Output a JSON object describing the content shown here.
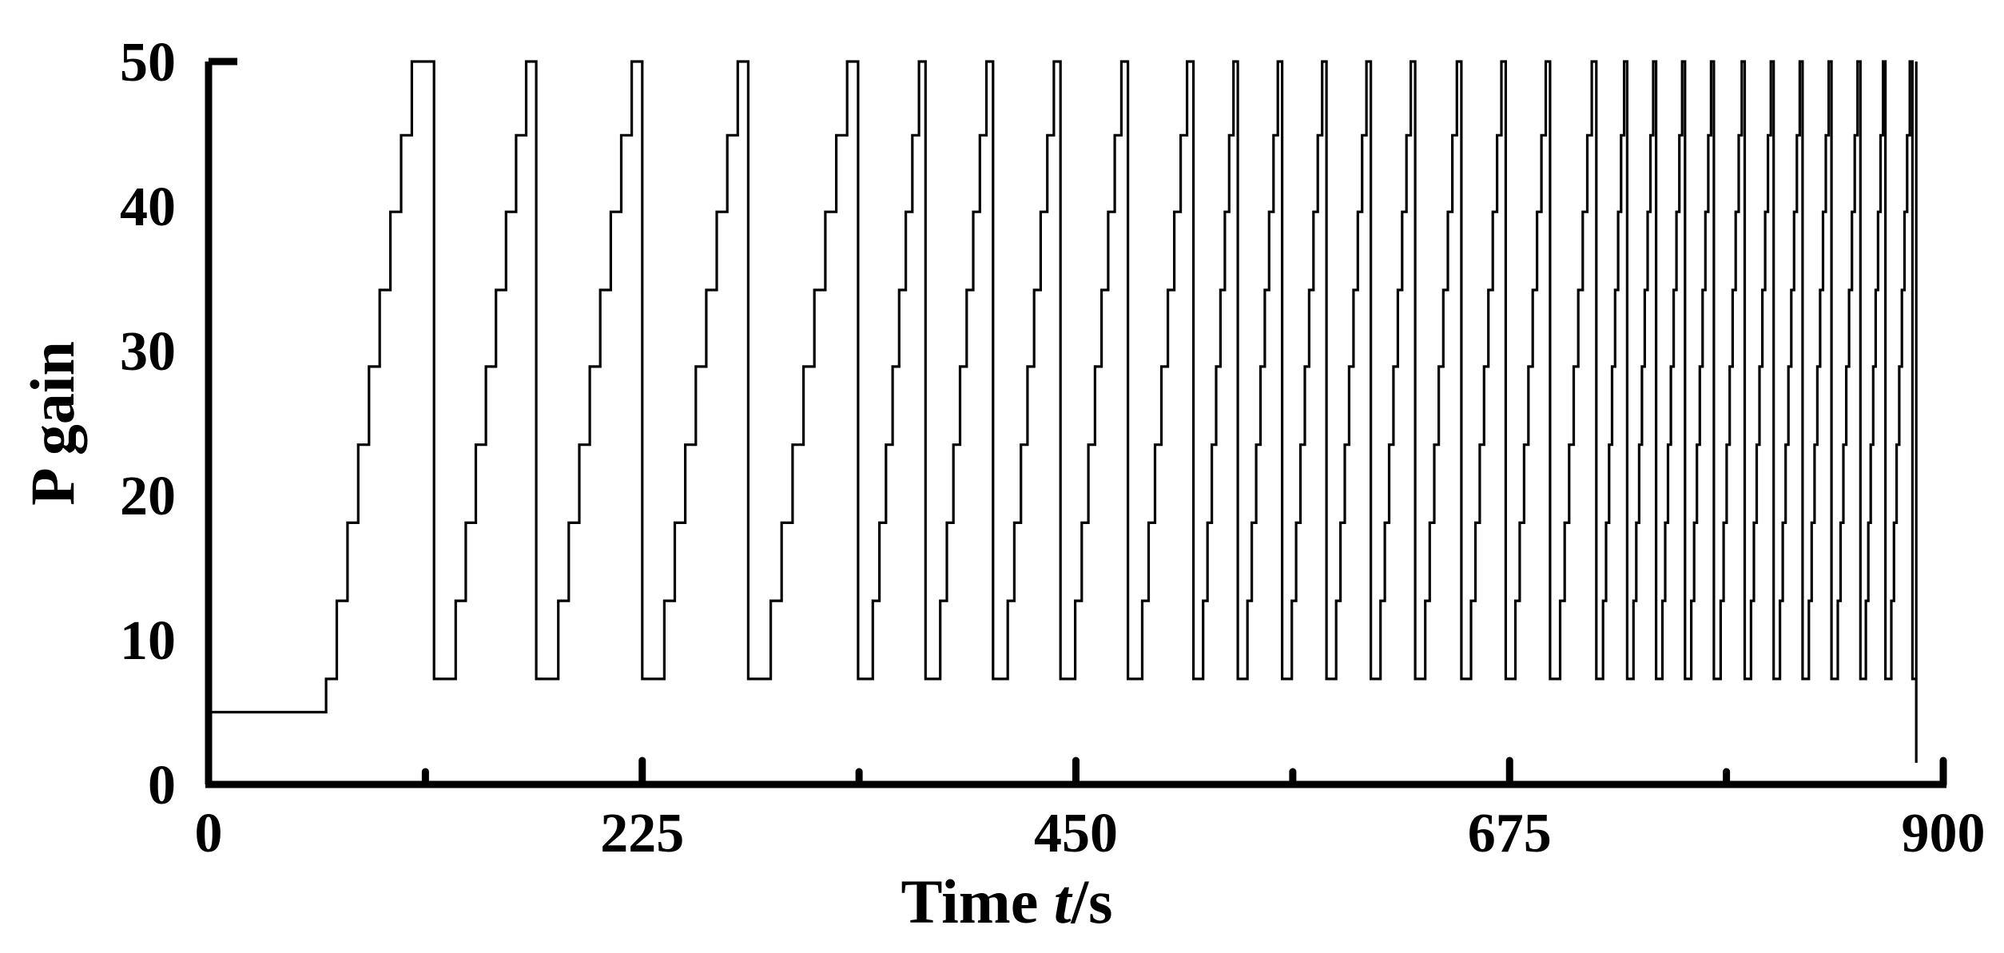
{
  "chart_data": {
    "type": "line",
    "title": "",
    "xlabel_prefix": "Time ",
    "xlabel_var": "t",
    "xlabel_suffix": "/s",
    "ylabel": "P gain",
    "xlim": [
      0,
      900
    ],
    "ylim": [
      0,
      50
    ],
    "x_ticks": [
      0,
      225,
      450,
      675,
      900
    ],
    "x_minor_ticks": [
      112.5,
      337.5,
      562.5,
      787.5
    ],
    "y_ticks": [
      0,
      10,
      20,
      30,
      40,
      50
    ],
    "grid": false,
    "legend": "none",
    "series": [
      {
        "line_color": "#000000",
        "baseline_value": 5,
        "baseline_until": 61,
        "step_levels": [
          7.3,
          12.7,
          18.1,
          23.5,
          28.9,
          34.2,
          39.6,
          44.9,
          50
        ],
        "reset_value": 7.3,
        "cycle_end_times": [
          117,
          170,
          225,
          280,
          337,
          372,
          407,
          442,
          477,
          511,
          534,
          557,
          580,
          603,
          626,
          650,
          673,
          696,
          720,
          736,
          751,
          766,
          781,
          797,
          812,
          827,
          842,
          857,
          870,
          884
        ],
        "final_value": 1.5,
        "end_time": 886
      }
    ]
  }
}
